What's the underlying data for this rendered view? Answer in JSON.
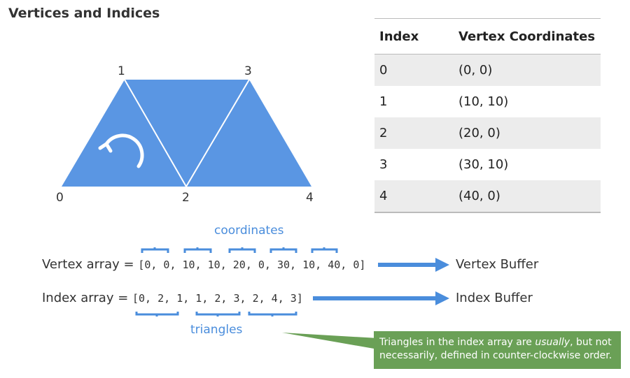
{
  "title": "Vertices and Indices",
  "vertex_labels": [
    "0",
    "1",
    "2",
    "3",
    "4"
  ],
  "table": {
    "headers": [
      "Index",
      "Vertex Coordinates"
    ],
    "rows": [
      [
        "0",
        "(0, 0)"
      ],
      [
        "1",
        "(10, 10)"
      ],
      [
        "2",
        "(20, 0)"
      ],
      [
        "3",
        "(30, 10)"
      ],
      [
        "4",
        "(40, 0)"
      ]
    ]
  },
  "vertex_array": {
    "label": "Vertex array = ",
    "values": "[0, 0, 10, 10, 20, 0, 30, 10, 40, 0]",
    "target": "Vertex Buffer"
  },
  "index_array": {
    "label": "Index array = ",
    "values": "[0, 2, 1, 1, 2, 3, 2, 4, 3]",
    "target": "Index Buffer"
  },
  "coordinates_label": "coordinates",
  "triangles_label": "triangles",
  "callout": {
    "before": "Triangles in the index array are ",
    "emphasis": "usually",
    "after": ", but not necessarily, defined in counter-clockwise order."
  },
  "colors": {
    "shape": "#5a96e3",
    "callout": "#6aa056",
    "accent_text": "#4a8ddc"
  },
  "icons": {
    "rotation": "counter-clockwise-arrow-icon"
  }
}
